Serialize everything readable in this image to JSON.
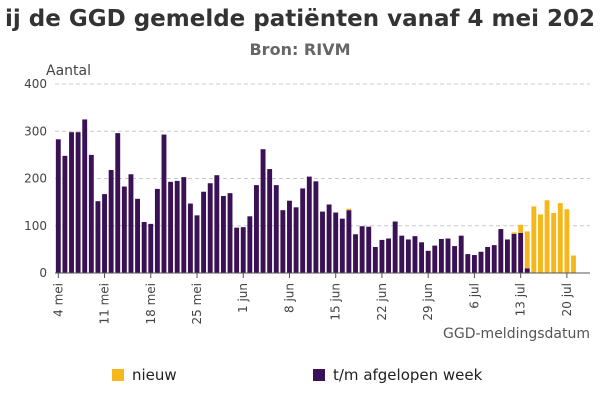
{
  "title": "ij de GGD gemelde patiënten vanaf 4 mei 202",
  "subtitle": "Bron: RIVM",
  "colors": {
    "nieuw": "#F6B71A",
    "previous": "#3B1156",
    "grid": "#c8c8c8",
    "axis": "#555555"
  },
  "legend": {
    "nieuw": "nieuw",
    "previous": "t/m afgelopen week"
  },
  "chart_data": {
    "type": "bar",
    "ylabel": "Aantal",
    "xlabel": "GGD-meldingsdatum",
    "ylim": [
      0,
      400
    ],
    "yticks": [
      0,
      100,
      200,
      300,
      400
    ],
    "x_tick_labels": [
      "4 mei",
      "11 mei",
      "18 mei",
      "25 mei",
      "1 jun",
      "8 jun",
      "15 jun",
      "22 jun",
      "29 jun",
      "6 jul",
      "13 jul",
      "20 jul"
    ],
    "start_date": "4 mei",
    "series": [
      {
        "name": "t/m afgelopen week",
        "values": [
          283,
          248,
          298,
          298,
          325,
          250,
          152,
          167,
          218,
          296,
          183,
          209,
          157,
          108,
          104,
          178,
          293,
          193,
          195,
          203,
          147,
          122,
          172,
          190,
          207,
          163,
          169,
          96,
          97,
          120,
          186,
          262,
          220,
          186,
          133,
          153,
          139,
          179,
          204,
          194,
          130,
          145,
          128,
          115,
          133,
          82,
          99,
          98,
          55,
          70,
          73,
          109,
          79,
          71,
          78,
          65,
          47,
          58,
          72,
          73,
          57,
          79,
          40,
          38,
          45,
          55,
          59,
          93,
          71,
          83,
          85,
          10,
          0,
          0,
          0,
          0,
          0,
          0,
          0,
          0,
          0
        ]
      },
      {
        "name": "nieuw",
        "values": [
          0,
          0,
          0,
          0,
          0,
          0,
          0,
          0,
          0,
          0,
          0,
          0,
          0,
          0,
          0,
          0,
          0,
          0,
          0,
          0,
          0,
          0,
          0,
          0,
          0,
          0,
          0,
          0,
          0,
          0,
          0,
          0,
          0,
          0,
          0,
          0,
          0,
          0,
          0,
          0,
          0,
          0,
          0,
          0,
          3,
          0,
          0,
          0,
          0,
          0,
          0,
          0,
          0,
          0,
          0,
          0,
          0,
          0,
          0,
          0,
          0,
          0,
          0,
          0,
          0,
          0,
          0,
          0,
          0,
          3,
          17,
          78,
          141,
          124,
          154,
          127,
          148,
          135,
          37,
          0,
          0
        ]
      }
    ]
  }
}
